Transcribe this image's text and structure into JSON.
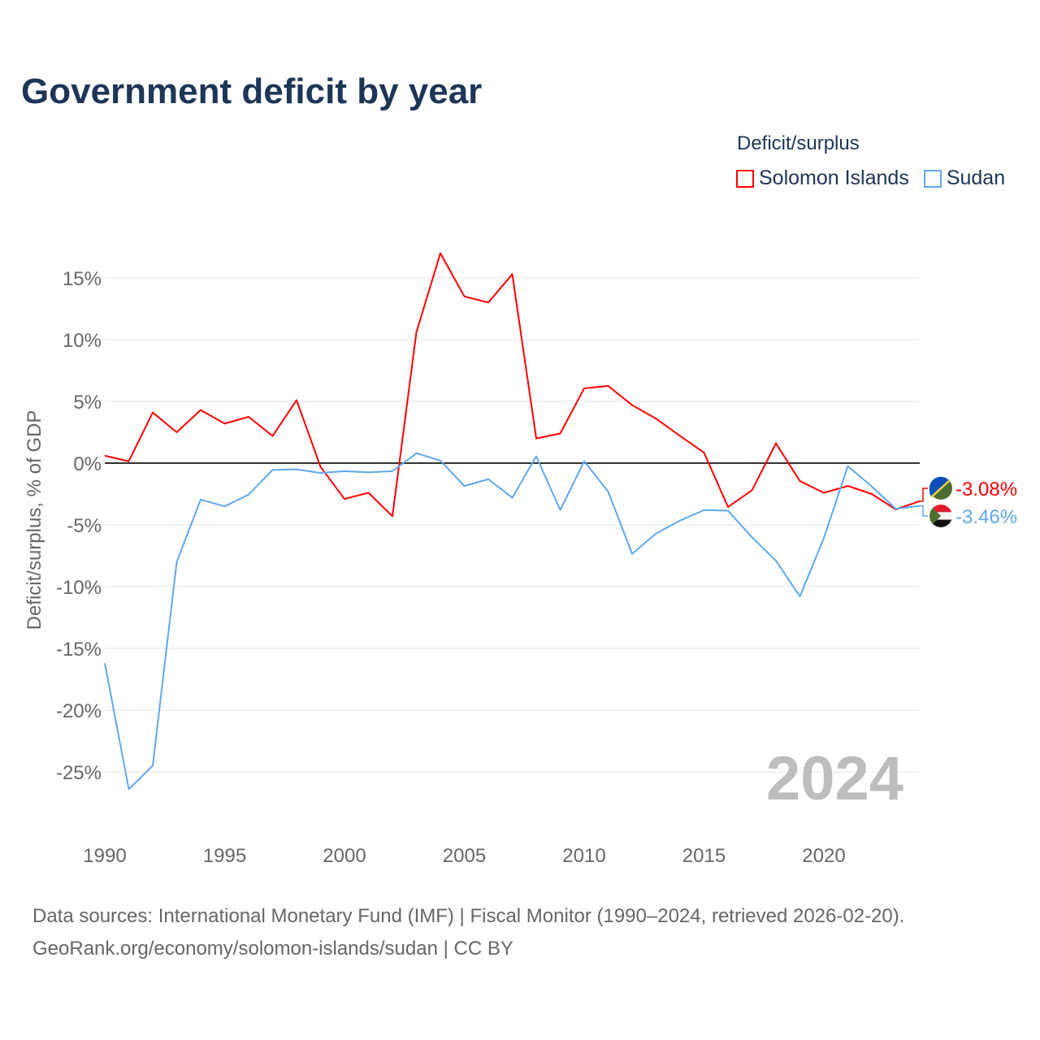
{
  "title": "Government deficit by year",
  "legend": {
    "title": "Deficit/surplus",
    "items": [
      "Solomon Islands",
      "Sudan"
    ]
  },
  "year_label": "2024",
  "source_line1": "Data sources: International Monetary Fund (IMF) | Fiscal Monitor (1990–2024, retrieved 2026-02-20).",
  "source_line2": "GeoRank.org/economy/solomon-islands/sudan | CC BY",
  "chart_data": {
    "type": "line",
    "title": "Government deficit by year",
    "xlabel": "",
    "ylabel": "Deficit/surplus, % of GDP",
    "xlim": [
      1990,
      2024
    ],
    "ylim": [
      -30,
      18
    ],
    "yticks": [
      15,
      10,
      5,
      0,
      -5,
      -10,
      -15,
      -20,
      -25
    ],
    "ytick_labels": [
      "15%",
      "10%",
      "5%",
      "0%",
      "-5%",
      "-10%",
      "-15%",
      "-20%",
      "-25%"
    ],
    "xticks": [
      1990,
      1995,
      2000,
      2005,
      2010,
      2015,
      2020
    ],
    "xtick_labels": [
      "1990",
      "1995",
      "2000",
      "2005",
      "2010",
      "2015",
      "2020"
    ],
    "x": [
      1990,
      1991,
      1992,
      1993,
      1994,
      1995,
      1996,
      1997,
      1998,
      1999,
      2000,
      2001,
      2002,
      2003,
      2004,
      2005,
      2006,
      2007,
      2008,
      2009,
      2010,
      2011,
      2012,
      2013,
      2014,
      2015,
      2016,
      2017,
      2018,
      2019,
      2020,
      2021,
      2022,
      2023,
      2024
    ],
    "series": [
      {
        "name": "Solomon Islands",
        "color": "#ff0000",
        "end_label": "-3.08%",
        "values": [
          0.6,
          0.15,
          4.1,
          2.5,
          4.3,
          3.2,
          3.75,
          2.2,
          5.1,
          -0.3,
          -2.9,
          -2.4,
          -4.3,
          10.6,
          17.0,
          13.5,
          13.0,
          15.3,
          2.0,
          2.4,
          6.05,
          6.25,
          4.7,
          3.6,
          2.2,
          0.85,
          -3.55,
          -2.2,
          1.6,
          -1.45,
          -2.4,
          -1.85,
          -2.5,
          -3.75,
          -3.08
        ]
      },
      {
        "name": "Sudan",
        "color": "#5fa8ee",
        "end_label": "-3.46%",
        "values": [
          -16.2,
          -26.4,
          -24.5,
          -8.0,
          -2.95,
          -3.5,
          -2.55,
          -0.55,
          -0.5,
          -0.8,
          -0.65,
          -0.75,
          -0.65,
          0.8,
          0.2,
          -1.85,
          -1.3,
          -2.8,
          0.55,
          -3.8,
          0.15,
          -2.3,
          -7.35,
          -5.7,
          -4.65,
          -3.8,
          -3.85,
          -6.0,
          -7.9,
          -10.8,
          -6.05,
          -0.25,
          -1.9,
          -3.7,
          -3.46
        ]
      }
    ],
    "grid": true,
    "legend_position": "top-right"
  }
}
